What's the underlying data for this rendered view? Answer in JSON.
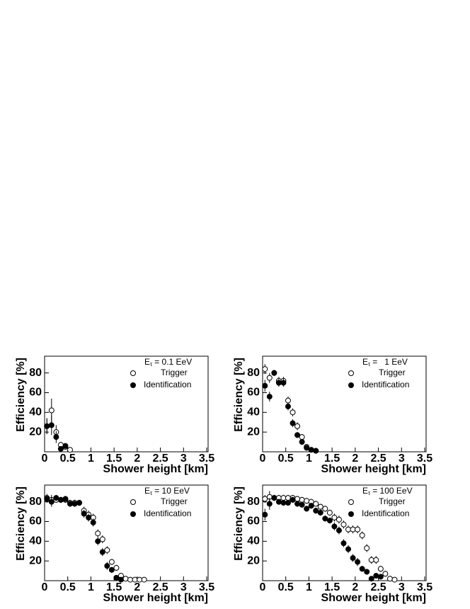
{
  "chart_data": [
    {
      "type": "scatter",
      "annotation": {
        "main": "E",
        "sub": "τ",
        "rest": "= 0.1 EeV"
      },
      "xlabel": "Shower height [km]",
      "ylabel": "Efficiency [%]",
      "xlim": [
        0,
        3.5
      ],
      "xticks": [
        0,
        0.5,
        1,
        1.5,
        2,
        2.5,
        3,
        3.5
      ],
      "ylim": [
        0,
        97
      ],
      "yticks": [
        20,
        40,
        60,
        80
      ],
      "series": [
        {
          "name": "Trigger",
          "marker": "open",
          "color": "#000000",
          "x": [
            0.05,
            0.15,
            0.25,
            0.35,
            0.45,
            0.55
          ],
          "values": [
            26,
            42,
            20,
            7,
            5,
            2
          ],
          "errors": [
            8,
            12,
            7,
            3,
            2,
            1
          ]
        },
        {
          "name": "Identification",
          "marker": "filled",
          "color": "#000000",
          "x": [
            0.05,
            0.15,
            0.25,
            0.35,
            0.45
          ],
          "values": [
            26,
            27,
            15,
            3,
            6
          ],
          "errors": [
            8,
            10,
            6,
            2,
            2
          ]
        }
      ]
    },
    {
      "type": "scatter",
      "annotation": {
        "main": "E",
        "sub": "τ",
        "rest": "=   1 EeV"
      },
      "xlabel": "Shower height [km]",
      "ylabel": "Efficiency [%]",
      "xlim": [
        0,
        3.5
      ],
      "xticks": [
        0,
        0.5,
        1,
        1.5,
        2,
        2.5,
        3,
        3.5
      ],
      "ylim": [
        0,
        97
      ],
      "yticks": [
        20,
        40,
        60,
        80
      ],
      "series": [
        {
          "name": "Trigger",
          "marker": "open",
          "color": "#000000",
          "x": [
            0.05,
            0.15,
            0.25,
            0.35,
            0.45,
            0.55,
            0.65,
            0.75,
            0.85,
            0.95,
            1.05,
            1.15
          ],
          "values": [
            84,
            75,
            80,
            72,
            72,
            52,
            40,
            26,
            15,
            5,
            2,
            1
          ],
          "errors": [
            5,
            5,
            3,
            4,
            4,
            4,
            4,
            4,
            3,
            2,
            1,
            1
          ]
        },
        {
          "name": "Identification",
          "marker": "filled",
          "color": "#000000",
          "x": [
            0.05,
            0.15,
            0.25,
            0.35,
            0.45,
            0.55,
            0.65,
            0.75,
            0.85,
            0.95,
            1.05,
            1.15
          ],
          "values": [
            67,
            56,
            80,
            70,
            70,
            46,
            29,
            17,
            10,
            4,
            2,
            1
          ],
          "errors": [
            6,
            5,
            3,
            4,
            4,
            4,
            4,
            3,
            3,
            2,
            1,
            1
          ]
        }
      ]
    },
    {
      "type": "scatter",
      "annotation": {
        "main": "E",
        "sub": "τ",
        "rest": "= 10 EeV"
      },
      "xlabel": "Shower height [km]",
      "ylabel": "Efficiency [%]",
      "xlim": [
        0,
        3.5
      ],
      "xticks": [
        0,
        0.5,
        1,
        1.5,
        2,
        2.5,
        3,
        3.5
      ],
      "ylim": [
        0,
        97
      ],
      "yticks": [
        20,
        40,
        60,
        80
      ],
      "series": [
        {
          "name": "Trigger",
          "marker": "open",
          "color": "#000000",
          "x": [
            0.05,
            0.15,
            0.25,
            0.35,
            0.45,
            0.55,
            0.65,
            0.75,
            0.85,
            0.95,
            1.05,
            1.15,
            1.25,
            1.35,
            1.45,
            1.55,
            1.65,
            1.75,
            1.85,
            1.95,
            2.05,
            2.15
          ],
          "values": [
            84,
            82,
            82,
            82,
            82,
            79,
            79,
            79,
            71,
            67,
            64,
            48,
            42,
            31,
            19,
            13,
            5,
            2,
            1,
            1,
            1,
            1
          ],
          "errors": [
            4,
            5,
            3,
            3,
            3,
            3,
            3,
            3,
            4,
            4,
            4,
            4,
            4,
            4,
            3,
            3,
            2,
            1,
            1,
            1,
            1,
            1
          ]
        },
        {
          "name": "Identification",
          "marker": "filled",
          "color": "#000000",
          "x": [
            0.05,
            0.15,
            0.25,
            0.35,
            0.45,
            0.55,
            0.65,
            0.75,
            0.85,
            0.95,
            1.05,
            1.15,
            1.25,
            1.35,
            1.45,
            1.55,
            1.65
          ],
          "values": [
            83,
            80,
            84,
            82,
            83,
            78,
            78,
            79,
            68,
            64,
            59,
            40,
            29,
            15,
            11,
            3,
            1
          ],
          "errors": [
            4,
            5,
            3,
            3,
            3,
            3,
            3,
            3,
            4,
            4,
            4,
            4,
            4,
            4,
            3,
            2,
            1
          ]
        }
      ]
    },
    {
      "type": "scatter",
      "annotation": {
        "main": "E",
        "sub": "τ",
        "rest": "= 100 EeV"
      },
      "xlabel": "Shower height [km]",
      "ylabel": "Efficiency [%]",
      "xlim": [
        0,
        3.5
      ],
      "xticks": [
        0,
        0.5,
        1,
        1.5,
        2,
        2.5,
        3,
        3.5
      ],
      "ylim": [
        0,
        97
      ],
      "yticks": [
        20,
        40,
        60,
        80
      ],
      "series": [
        {
          "name": "Trigger",
          "marker": "open",
          "color": "#000000",
          "x": [
            0.05,
            0.15,
            0.25,
            0.35,
            0.45,
            0.55,
            0.65,
            0.75,
            0.85,
            0.95,
            1.05,
            1.15,
            1.25,
            1.35,
            1.45,
            1.55,
            1.65,
            1.75,
            1.85,
            1.95,
            2.05,
            2.15,
            2.25,
            2.35,
            2.45,
            2.55,
            2.65,
            2.75,
            2.85
          ],
          "values": [
            83,
            85,
            84,
            84,
            84,
            84,
            84,
            83,
            82,
            81,
            80,
            78,
            75,
            73,
            69,
            64,
            62,
            57,
            52,
            52,
            52,
            46,
            33,
            21,
            21,
            12,
            7,
            2,
            1
          ],
          "errors": [
            4,
            6,
            3,
            3,
            3,
            3,
            3,
            3,
            3,
            3,
            3,
            3,
            3,
            3,
            3,
            4,
            4,
            4,
            4,
            4,
            4,
            4,
            4,
            4,
            4,
            3,
            3,
            2,
            1
          ]
        },
        {
          "name": "Identification",
          "marker": "filled",
          "color": "#000000",
          "x": [
            0.05,
            0.15,
            0.25,
            0.35,
            0.45,
            0.55,
            0.65,
            0.75,
            0.85,
            0.95,
            1.05,
            1.15,
            1.25,
            1.35,
            1.45,
            1.55,
            1.65,
            1.75,
            1.85,
            1.95,
            2.05,
            2.15,
            2.25,
            2.35,
            2.45,
            2.55
          ],
          "values": [
            67,
            78,
            84,
            80,
            79,
            79,
            82,
            78,
            77,
            73,
            76,
            71,
            69,
            63,
            61,
            55,
            51,
            38,
            32,
            23,
            19,
            12,
            9,
            2,
            5,
            4
          ],
          "errors": [
            6,
            6,
            3,
            3,
            3,
            3,
            3,
            3,
            3,
            3,
            3,
            3,
            3,
            3,
            3,
            4,
            4,
            4,
            4,
            4,
            4,
            3,
            3,
            1,
            2,
            2
          ]
        }
      ]
    }
  ]
}
